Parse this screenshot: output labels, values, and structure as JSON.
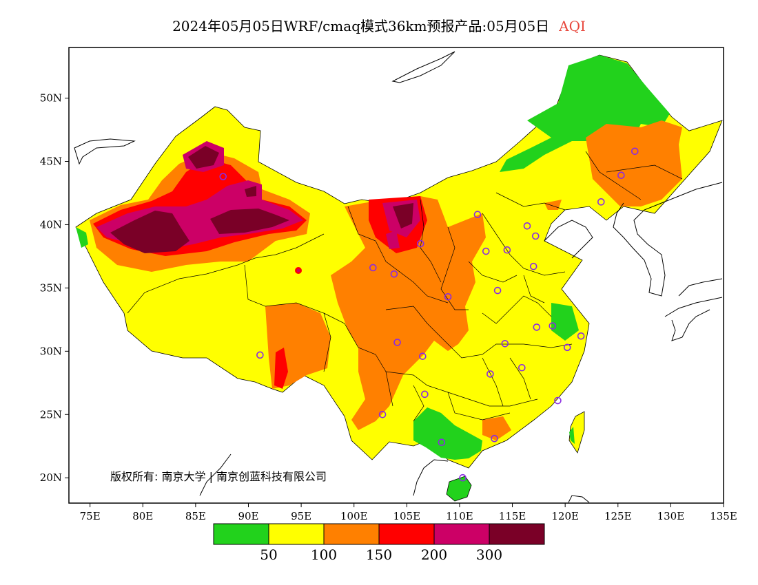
{
  "title": {
    "main": "2024年05月05日WRF/cmaq模式36km预报产品:05月05日",
    "variable": "AQI",
    "variable_color": "#e8483d"
  },
  "map": {
    "lon_range": [
      73,
      135
    ],
    "lat_range": [
      18,
      54
    ],
    "lon_ticks": [
      "75E",
      "80E",
      "85E",
      "90E",
      "95E",
      "100E",
      "105E",
      "110E",
      "115E",
      "120E",
      "125E",
      "130E",
      "135E"
    ],
    "lat_ticks": [
      "20N",
      "25N",
      "30N",
      "35N",
      "40N",
      "45N",
      "50N"
    ]
  },
  "copyright": "版权所有: 南京大学 | 南京创蓝科技有限公司",
  "colorbar": {
    "colors": [
      "#22d21c",
      "#ffff00",
      "#ff8000",
      "#ff0000",
      "#cc0066",
      "#7a0027"
    ],
    "labels": [
      "50",
      "100",
      "150",
      "200",
      "300"
    ]
  },
  "cities": [
    [
      87.6,
      43.8
    ],
    [
      91.1,
      29.7
    ],
    [
      101.8,
      36.6
    ],
    [
      103.8,
      36.1
    ],
    [
      106.3,
      38.5
    ],
    [
      111.7,
      40.8
    ],
    [
      116.4,
      39.9
    ],
    [
      117.2,
      39.1
    ],
    [
      114.5,
      38.0
    ],
    [
      112.5,
      37.9
    ],
    [
      117.0,
      36.7
    ],
    [
      113.6,
      34.8
    ],
    [
      108.9,
      34.3
    ],
    [
      104.1,
      30.7
    ],
    [
      106.5,
      29.6
    ],
    [
      114.3,
      30.6
    ],
    [
      112.9,
      28.2
    ],
    [
      115.9,
      28.7
    ],
    [
      117.3,
      31.9
    ],
    [
      118.8,
      32.0
    ],
    [
      120.2,
      30.3
    ],
    [
      121.5,
      31.2
    ],
    [
      119.3,
      26.1
    ],
    [
      113.3,
      23.1
    ],
    [
      108.3,
      22.8
    ],
    [
      110.3,
      20.0
    ],
    [
      106.7,
      26.6
    ],
    [
      102.7,
      25.0
    ],
    [
      126.6,
      45.8
    ],
    [
      125.3,
      43.9
    ],
    [
      123.4,
      41.8
    ]
  ]
}
